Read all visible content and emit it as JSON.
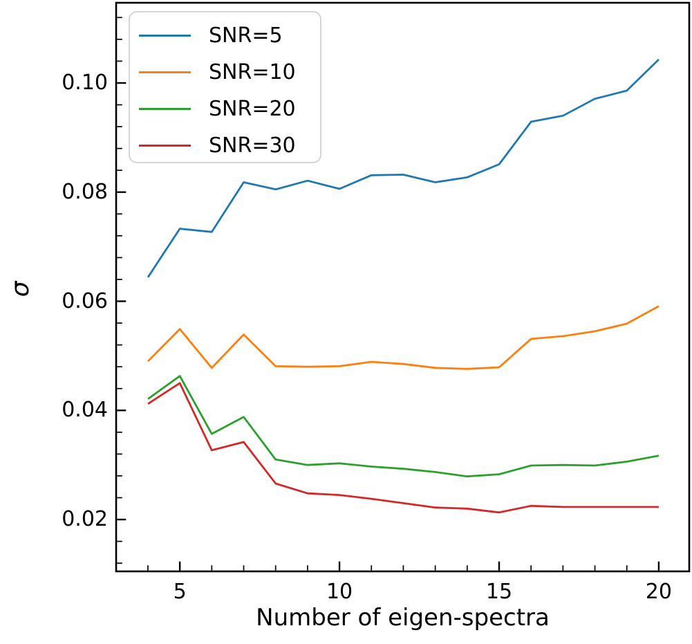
{
  "chart_data": {
    "type": "line",
    "title": "",
    "xlabel": "Number of eigen-spectra",
    "ylabel": "σ",
    "x": [
      4,
      5,
      6,
      7,
      8,
      9,
      10,
      11,
      12,
      13,
      14,
      15,
      16,
      17,
      18,
      19,
      20
    ],
    "series": [
      {
        "name": "SNR=5",
        "color": "#1f77b4",
        "values": [
          0.0644,
          0.0733,
          0.0727,
          0.0818,
          0.0805,
          0.0821,
          0.0806,
          0.0831,
          0.0832,
          0.0818,
          0.0827,
          0.0851,
          0.0929,
          0.094,
          0.0971,
          0.0986,
          0.1043
        ]
      },
      {
        "name": "SNR=10",
        "color": "#ff7f0e",
        "values": [
          0.049,
          0.0549,
          0.0478,
          0.0539,
          0.0481,
          0.048,
          0.0481,
          0.0489,
          0.0485,
          0.0478,
          0.0476,
          0.0479,
          0.0531,
          0.0536,
          0.0545,
          0.0559,
          0.0591
        ]
      },
      {
        "name": "SNR=20",
        "color": "#2ca02c",
        "values": [
          0.0421,
          0.0463,
          0.0357,
          0.0388,
          0.031,
          0.03,
          0.0303,
          0.0297,
          0.0293,
          0.0287,
          0.0279,
          0.0283,
          0.0299,
          0.03,
          0.0299,
          0.0306,
          0.0317
        ]
      },
      {
        "name": "SNR=30",
        "color": "#d62728",
        "values": [
          0.0412,
          0.045,
          0.0327,
          0.0342,
          0.0266,
          0.0248,
          0.0245,
          0.0238,
          0.023,
          0.0222,
          0.022,
          0.0213,
          0.0225,
          0.0223,
          0.0223,
          0.0223,
          0.0223
        ]
      }
    ],
    "xlim": [
      3.005,
      20.955
    ],
    "ylim": [
      0.0105,
      0.1147
    ],
    "xticks": [
      5,
      10,
      15,
      20
    ],
    "xtick_labels": [
      "5",
      "10",
      "15",
      "20"
    ],
    "yticks": [
      0.02,
      0.04,
      0.06,
      0.08,
      0.1
    ],
    "ytick_labels": [
      "0.02",
      "0.04",
      "0.06",
      "0.08",
      "0.10"
    ],
    "minor_xtick_step": 1,
    "minor_ytick_step": 0.004,
    "grid": false,
    "legend_position": "upper left",
    "axis_color": "#000000",
    "background_color": "#ffffff"
  }
}
